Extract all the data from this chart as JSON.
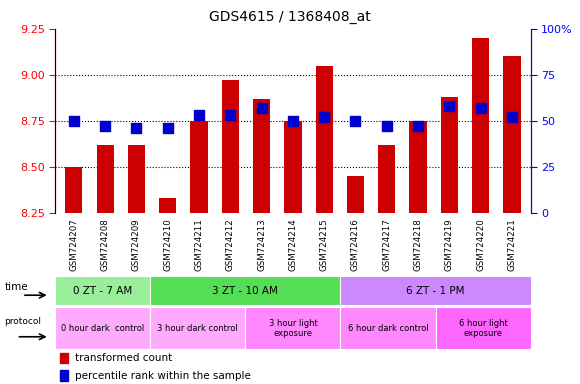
{
  "title": "GDS4615 / 1368408_at",
  "samples": [
    "GSM724207",
    "GSM724208",
    "GSM724209",
    "GSM724210",
    "GSM724211",
    "GSM724212",
    "GSM724213",
    "GSM724214",
    "GSM724215",
    "GSM724216",
    "GSM724217",
    "GSM724218",
    "GSM724219",
    "GSM724220",
    "GSM724221"
  ],
  "red_values": [
    8.5,
    8.62,
    8.62,
    8.33,
    8.75,
    8.97,
    8.87,
    8.75,
    9.05,
    8.45,
    8.62,
    8.75,
    8.88,
    9.2,
    9.1
  ],
  "blue_values": [
    50,
    47,
    46,
    46,
    53,
    53,
    57,
    50,
    52,
    50,
    47,
    47,
    58,
    57,
    52
  ],
  "ylim_left": [
    8.25,
    9.25
  ],
  "ylim_right": [
    0,
    100
  ],
  "yticks_left": [
    8.25,
    8.5,
    8.75,
    9.0,
    9.25
  ],
  "yticks_right": [
    0,
    25,
    50,
    75,
    100
  ],
  "grid_levels": [
    8.5,
    8.75,
    9.0
  ],
  "bar_color": "#CC0000",
  "dot_color": "#0000CC",
  "time_groups": [
    {
      "label": "0 ZT - 7 AM",
      "start": 0,
      "end": 3,
      "color": "#99EE99"
    },
    {
      "label": "3 ZT - 10 AM",
      "start": 3,
      "end": 9,
      "color": "#55DD55"
    },
    {
      "label": "6 ZT - 1 PM",
      "start": 9,
      "end": 15,
      "color": "#CC88FF"
    }
  ],
  "protocol_groups": [
    {
      "label": "0 hour dark  control",
      "start": 0,
      "end": 3,
      "color": "#FFAAFF"
    },
    {
      "label": "3 hour dark control",
      "start": 3,
      "end": 6,
      "color": "#FFAAFF"
    },
    {
      "label": "3 hour light\nexposure",
      "start": 6,
      "end": 9,
      "color": "#FF88FF"
    },
    {
      "label": "6 hour dark control",
      "start": 9,
      "end": 12,
      "color": "#FF88FF"
    },
    {
      "label": "6 hour light\nexposure",
      "start": 12,
      "end": 15,
      "color": "#FF66FF"
    }
  ],
  "legend_red": "transformed count",
  "legend_blue": "percentile rank within the sample",
  "bg_color": "#FFFFFF",
  "bar_width": 0.55,
  "dot_size": 45,
  "xtick_bg": "#DDDDDD"
}
